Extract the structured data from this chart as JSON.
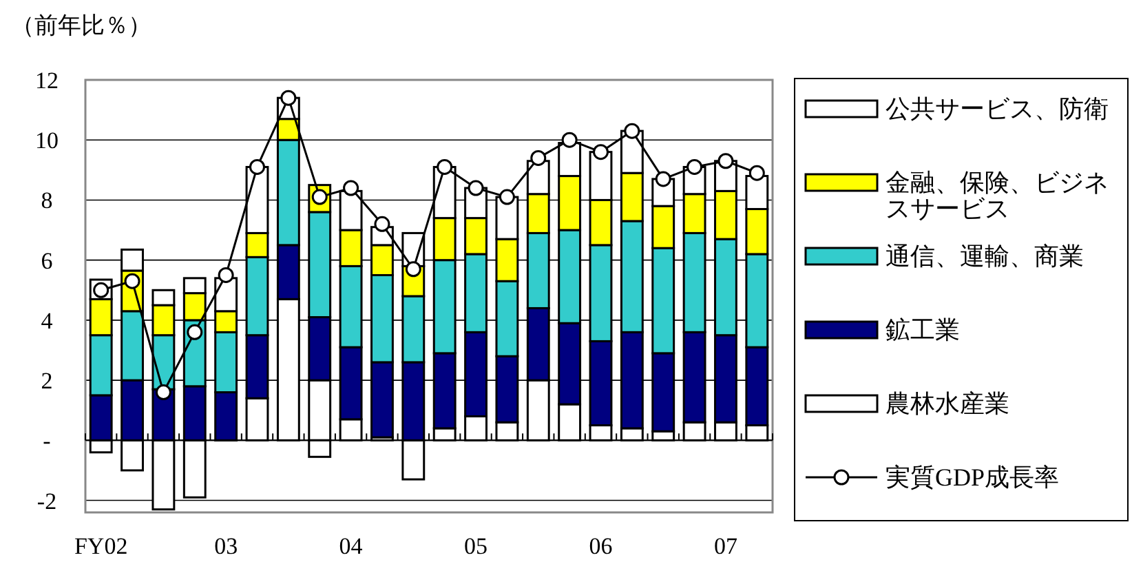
{
  "chart_data": {
    "type": "bar",
    "stacked": true,
    "ylabel": "（前年比％）",
    "categories": [
      "FY02",
      null,
      null,
      null,
      "03",
      null,
      null,
      null,
      "04",
      null,
      null,
      null,
      "05",
      null,
      null,
      null,
      "06",
      null,
      null,
      null,
      "07",
      null
    ],
    "ylim": [
      -2.4,
      12
    ],
    "yticks": [
      {
        "value": -2,
        "label": "-2"
      },
      {
        "value": 0,
        "label": "-"
      },
      2,
      4,
      6,
      8,
      10,
      12
    ],
    "grid": "y",
    "legend": "right",
    "marker": "circle",
    "series": [
      {
        "name": "農林水産業",
        "color": "#ffffff",
        "values": [
          -0.4,
          -1.0,
          -2.3,
          -1.9,
          0,
          1.4,
          4.7,
          2.0,
          0.7,
          0.1,
          -1.3,
          0.4,
          0.8,
          0.6,
          2.0,
          1.2,
          0.5,
          0.4,
          0.3,
          0.6,
          0.6,
          0.5
        ]
      },
      {
        "name": "鉱工業",
        "color": "#000080",
        "values": [
          1.5,
          2.0,
          1.7,
          1.8,
          1.6,
          2.1,
          1.8,
          2.1,
          2.4,
          2.5,
          2.6,
          2.5,
          2.8,
          2.2,
          2.4,
          2.7,
          2.8,
          3.2,
          2.6,
          3.0,
          2.9,
          2.6
        ]
      },
      {
        "name": "通信、運輸、商業",
        "color": "#33cccc",
        "values": [
          2.0,
          2.3,
          1.8,
          2.2,
          2.0,
          2.6,
          3.5,
          3.5,
          2.7,
          2.9,
          2.2,
          3.1,
          2.6,
          2.5,
          2.5,
          3.1,
          3.2,
          3.7,
          3.5,
          3.3,
          3.2,
          3.1
        ]
      },
      {
        "name": "金融、保険、ビジネスサービス",
        "color": "#ffff00",
        "values": [
          1.2,
          1.35,
          1.0,
          0.9,
          0.7,
          0.8,
          0.7,
          0.9,
          1.2,
          1.0,
          1.0,
          1.4,
          1.2,
          1.4,
          1.3,
          1.8,
          1.5,
          1.6,
          1.4,
          1.3,
          1.6,
          1.5
        ]
      },
      {
        "name": "公共サービス、防衛",
        "color": "#ffffff",
        "values": [
          0.65,
          0.7,
          0.5,
          0.5,
          1.1,
          2.2,
          0.7,
          -0.55,
          1.3,
          0.6,
          1.1,
          1.7,
          1.0,
          1.4,
          1.1,
          1.1,
          1.6,
          1.4,
          0.9,
          0.9,
          1.0,
          1.1
        ]
      },
      {
        "name": "実質GDP成長率",
        "type": "line",
        "color": "#000000",
        "values": [
          5.0,
          5.3,
          1.6,
          3.6,
          5.5,
          9.1,
          11.4,
          8.1,
          8.4,
          7.2,
          5.7,
          9.1,
          8.4,
          8.1,
          9.4,
          10.0,
          9.6,
          10.3,
          8.7,
          9.1,
          9.3,
          8.9
        ]
      }
    ]
  }
}
